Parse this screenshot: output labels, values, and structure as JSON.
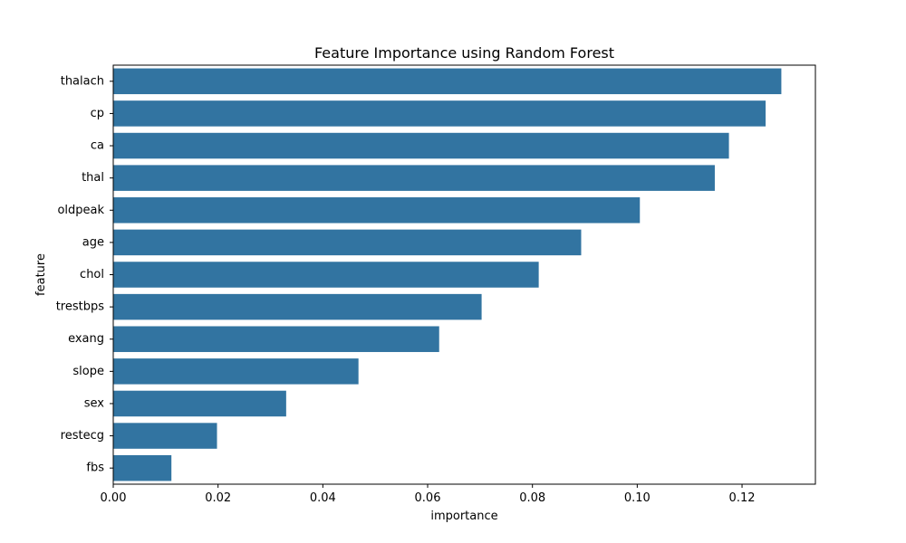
{
  "chart_data": {
    "type": "bar",
    "orientation": "horizontal",
    "title": "Feature Importance using Random Forest",
    "xlabel": "importance",
    "ylabel": "feature",
    "categories": [
      "thalach",
      "cp",
      "ca",
      "thal",
      "oldpeak",
      "age",
      "chol",
      "trestbps",
      "exang",
      "slope",
      "sex",
      "restecg",
      "fbs"
    ],
    "values": [
      0.1275,
      0.1245,
      0.1175,
      0.1148,
      0.1005,
      0.0893,
      0.0812,
      0.0703,
      0.0622,
      0.0468,
      0.033,
      0.0198,
      0.0111
    ],
    "xlim": [
      0.0,
      0.134
    ],
    "xticks": [
      0.0,
      0.02,
      0.04,
      0.06,
      0.08,
      0.1,
      0.12
    ],
    "xtick_labels": [
      "0.00",
      "0.02",
      "0.04",
      "0.06",
      "0.08",
      "0.10",
      "0.12"
    ],
    "grid": false,
    "colors": {
      "bar": "#3274a1",
      "axis": "#000000"
    }
  }
}
